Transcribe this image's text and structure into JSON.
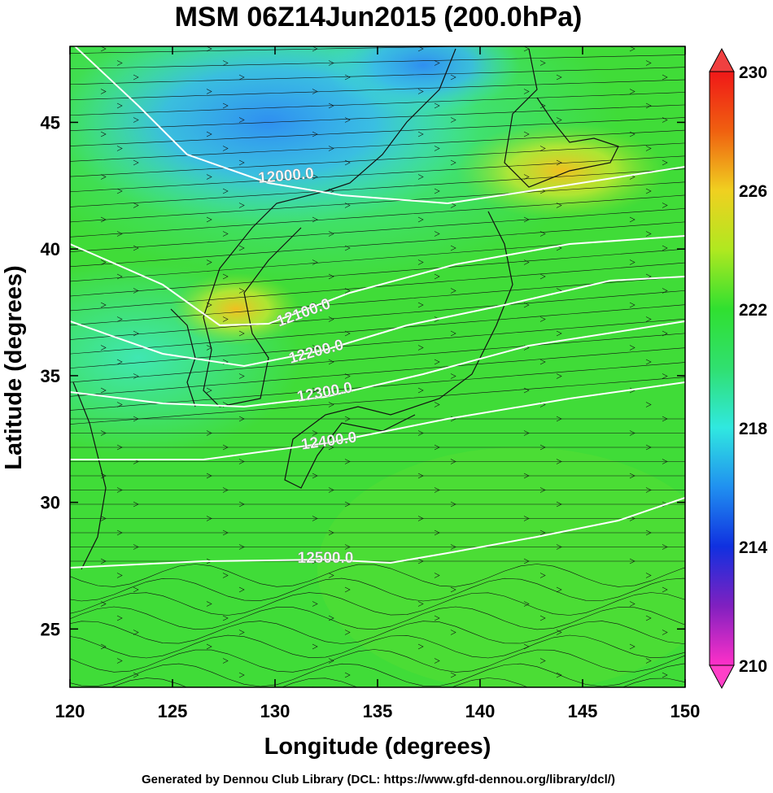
{
  "chart_data": {
    "type": "map",
    "title": "MSM 06Z14Jun2015 (200.0hPa)",
    "x_label": "Longitude (degrees)",
    "y_label": "Latitude  (degrees)",
    "footer": "Generated by Dennou Club Library (DCL: https://www.gfd-dennou.org/library/dcl/)",
    "xlim": [
      120,
      150
    ],
    "ylim": [
      22.7,
      48
    ],
    "xticks": [
      120,
      125,
      130,
      135,
      140,
      145,
      150
    ],
    "yticks": [
      25,
      30,
      35,
      40,
      45
    ],
    "colorbar": {
      "lim": [
        210,
        230
      ],
      "ticks": [
        210,
        214,
        218,
        222,
        226,
        230
      ]
    },
    "contours": [
      {
        "value": 12000,
        "label": "12000.0"
      },
      {
        "value": 12100,
        "label": "12100.0"
      },
      {
        "value": 12200,
        "label": "12200.0"
      },
      {
        "value": 12300,
        "label": "12300.0"
      },
      {
        "value": 12400,
        "label": "12400.0"
      },
      {
        "value": 12500,
        "label": "12500.0"
      }
    ]
  }
}
